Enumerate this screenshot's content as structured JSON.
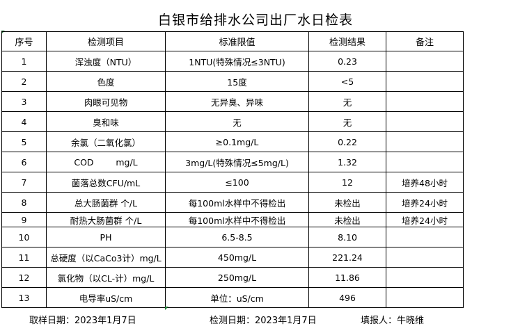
{
  "title": "白银市给排水公司出厂水日检表",
  "headers": [
    "序号",
    "检测项目",
    "标准限值",
    "检测结果",
    "备注"
  ],
  "rows": [
    [
      "1",
      "浑浊度（NTU）",
      "1NTU(特殊情况≤3NTU)",
      "0.23",
      ""
    ],
    [
      "2",
      "色度",
      "15度",
      "<5",
      ""
    ],
    [
      "3",
      "肉眼可见物",
      "无异臭、异味",
      "无",
      ""
    ],
    [
      "4",
      "臭和味",
      "无",
      "无",
      ""
    ],
    [
      "5",
      "余氯（二氧化氯）",
      "≥0.1mg/L",
      "0.22",
      ""
    ],
    [
      "6",
      "COD        mg/L",
      "3mg/L(特殊情况≤5mg/L)",
      "1.32",
      ""
    ],
    [
      "7",
      "菌落总数CFU/mL",
      "≤100",
      "12",
      "培养48小时"
    ],
    [
      "8",
      "总大肠菌群 个/L",
      "每100ml水样中不得检出",
      "未检出",
      "培养24小时"
    ],
    [
      "9",
      "耐热大肠菌群 个/L",
      "每100ml水样中不得检出",
      "未检出",
      "培养24小时"
    ],
    [
      "10",
      "PH",
      "6.5-8.5",
      "8.10",
      ""
    ],
    [
      "11",
      "总硬度（以CaCo3计）mg/L",
      "450mg/L",
      "221.24",
      ""
    ],
    [
      "12",
      "氯化物（以CL-计）mg/L",
      "250mg/L",
      "11.86",
      ""
    ],
    [
      "13",
      "电导率uS/cm",
      "单位：uS/cm",
      "496",
      ""
    ]
  ],
  "footer": {
    "sampling_date": "取样日期：2023年1月7日",
    "test_date": "检测日期：2023年1月7日",
    "reporter": "填报人：牛晓维"
  }
}
